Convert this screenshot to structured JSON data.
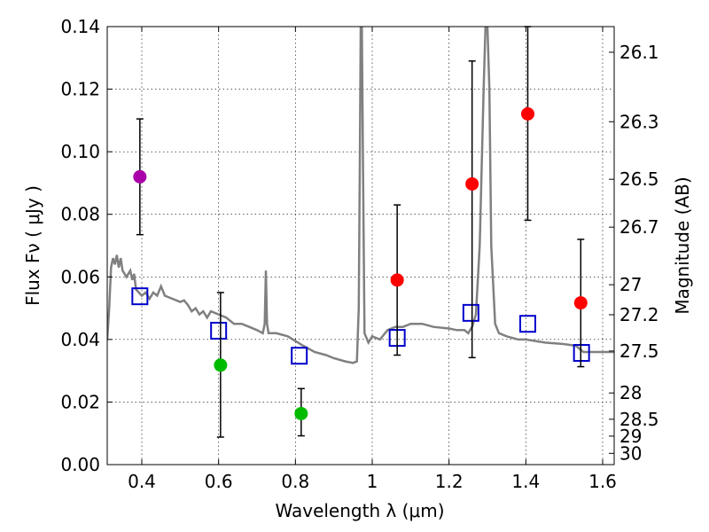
{
  "chart_data": {
    "type": "scatter",
    "xlabel": "Wavelength  λ (μm)",
    "ylabel": "Flux  Fν  ( μJy )",
    "y2label": "Magnitude (AB)",
    "xlim": [
      0.31,
      1.63
    ],
    "ylim": [
      0.0,
      0.14
    ],
    "grid": true,
    "x_ticks": [
      "0.4",
      "0.6",
      "0.8",
      "1",
      "1.2",
      "1.4",
      "1.6"
    ],
    "y_ticks": [
      "0.00",
      "0.02",
      "0.04",
      "0.06",
      "0.08",
      "0.10",
      "0.12",
      "0.14"
    ],
    "y2_ticks": [
      {
        "label": "26.1",
        "flux": 0.1318
      },
      {
        "label": "26.3",
        "flux": 0.1096
      },
      {
        "label": "26.5",
        "flux": 0.0912
      },
      {
        "label": "26.7",
        "flux": 0.0759
      },
      {
        "label": "27",
        "flux": 0.0575
      },
      {
        "label": "27.2",
        "flux": 0.0479
      },
      {
        "label": "27.5",
        "flux": 0.0363
      },
      {
        "label": "28",
        "flux": 0.0229
      },
      {
        "label": "28.5",
        "flux": 0.0145
      },
      {
        "label": "29",
        "flux": 0.0091
      },
      {
        "label": "30",
        "flux": 0.0036
      }
    ],
    "colors": {
      "model": "#808080",
      "model_points": "#0000cc",
      "purple": "#aa00aa",
      "green": "#00bb00",
      "red": "#ff0000",
      "errorbar": "#000000"
    },
    "observed_series": [
      {
        "name": "purple",
        "points": [
          {
            "x": 0.395,
            "y": 0.092,
            "yerr": [
              0.0735,
              0.1105
            ]
          }
        ]
      },
      {
        "name": "green",
        "points": [
          {
            "x": 0.605,
            "y": 0.0318,
            "yerr": [
              0.0088,
              0.055
            ]
          },
          {
            "x": 0.815,
            "y": 0.0163,
            "yerr": [
              0.0092,
              0.0243
            ]
          }
        ]
      },
      {
        "name": "red",
        "points": [
          {
            "x": 1.065,
            "y": 0.059,
            "yerr": [
              0.035,
              0.083
            ]
          },
          {
            "x": 1.26,
            "y": 0.0897,
            "yerr": [
              0.0342,
              0.129
            ]
          },
          {
            "x": 1.405,
            "y": 0.1121,
            "yerr": [
              0.0781,
              0.14
            ]
          },
          {
            "x": 1.543,
            "y": 0.0517,
            "yerr": [
              0.0313,
              0.072
            ]
          }
        ]
      }
    ],
    "model_points": [
      {
        "x": 0.395,
        "y": 0.0538
      },
      {
        "x": 0.6,
        "y": 0.0428
      },
      {
        "x": 0.81,
        "y": 0.0348
      },
      {
        "x": 1.065,
        "y": 0.0405
      },
      {
        "x": 1.257,
        "y": 0.0485
      },
      {
        "x": 1.405,
        "y": 0.045
      },
      {
        "x": 1.545,
        "y": 0.0357
      }
    ],
    "model_spectrum": [
      [
        0.31,
        0.04
      ],
      [
        0.315,
        0.05
      ],
      [
        0.32,
        0.063
      ],
      [
        0.325,
        0.066
      ],
      [
        0.33,
        0.064
      ],
      [
        0.335,
        0.067
      ],
      [
        0.34,
        0.063
      ],
      [
        0.345,
        0.066
      ],
      [
        0.35,
        0.062
      ],
      [
        0.36,
        0.06
      ],
      [
        0.37,
        0.062
      ],
      [
        0.375,
        0.059
      ],
      [
        0.38,
        0.061
      ],
      [
        0.385,
        0.056
      ],
      [
        0.4,
        0.054
      ],
      [
        0.41,
        0.055
      ],
      [
        0.42,
        0.053
      ],
      [
        0.43,
        0.055
      ],
      [
        0.44,
        0.054
      ],
      [
        0.45,
        0.057
      ],
      [
        0.46,
        0.054
      ],
      [
        0.48,
        0.053
      ],
      [
        0.5,
        0.052
      ],
      [
        0.51,
        0.0525
      ],
      [
        0.52,
        0.051
      ],
      [
        0.53,
        0.049
      ],
      [
        0.54,
        0.05
      ],
      [
        0.55,
        0.048
      ],
      [
        0.56,
        0.049
      ],
      [
        0.57,
        0.047
      ],
      [
        0.58,
        0.049
      ],
      [
        0.6,
        0.048
      ],
      [
        0.62,
        0.047
      ],
      [
        0.64,
        0.045
      ],
      [
        0.66,
        0.045
      ],
      [
        0.68,
        0.044
      ],
      [
        0.7,
        0.043
      ],
      [
        0.715,
        0.042
      ],
      [
        0.72,
        0.045
      ],
      [
        0.723,
        0.062
      ],
      [
        0.726,
        0.045
      ],
      [
        0.73,
        0.042
      ],
      [
        0.75,
        0.042
      ],
      [
        0.78,
        0.041
      ],
      [
        0.8,
        0.0395
      ],
      [
        0.82,
        0.038
      ],
      [
        0.85,
        0.036
      ],
      [
        0.88,
        0.035
      ],
      [
        0.9,
        0.034
      ],
      [
        0.93,
        0.033
      ],
      [
        0.95,
        0.0325
      ],
      [
        0.96,
        0.033
      ],
      [
        0.965,
        0.05
      ],
      [
        0.968,
        0.1
      ],
      [
        0.97,
        0.14
      ],
      [
        0.973,
        0.14
      ],
      [
        0.976,
        0.095
      ],
      [
        0.98,
        0.042
      ],
      [
        0.99,
        0.039
      ],
      [
        1.0,
        0.041
      ],
      [
        1.02,
        0.04
      ],
      [
        1.04,
        0.043
      ],
      [
        1.06,
        0.044
      ],
      [
        1.08,
        0.044
      ],
      [
        1.1,
        0.045
      ],
      [
        1.13,
        0.045
      ],
      [
        1.16,
        0.044
      ],
      [
        1.2,
        0.0435
      ],
      [
        1.22,
        0.043
      ],
      [
        1.24,
        0.043
      ],
      [
        1.25,
        0.042
      ],
      [
        1.26,
        0.044
      ],
      [
        1.27,
        0.048
      ],
      [
        1.28,
        0.07
      ],
      [
        1.29,
        0.12
      ],
      [
        1.295,
        0.14
      ],
      [
        1.3,
        0.14
      ],
      [
        1.305,
        0.12
      ],
      [
        1.31,
        0.07
      ],
      [
        1.32,
        0.045
      ],
      [
        1.33,
        0.042
      ],
      [
        1.35,
        0.041
      ],
      [
        1.38,
        0.04
      ],
      [
        1.4,
        0.04
      ],
      [
        1.45,
        0.039
      ],
      [
        1.5,
        0.0385
      ],
      [
        1.53,
        0.038
      ],
      [
        1.55,
        0.036
      ],
      [
        1.57,
        0.036
      ],
      [
        1.6,
        0.036
      ],
      [
        1.63,
        0.036
      ]
    ]
  }
}
